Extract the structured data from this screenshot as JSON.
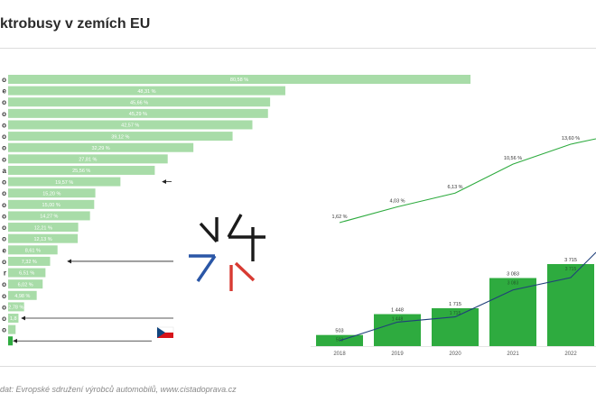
{
  "header": {
    "title": "ktrobusy v zemích EU"
  },
  "footer": {
    "source": "dat: Evropské sdružení výrobců automobilů, www.cistadoprava.cz"
  },
  "colors": {
    "bar": "#a8dca8",
    "column": "#2eab3f",
    "share_line": "#2eab3f",
    "count_line": "#1f3f7a",
    "logo_dark": "#1a1a1a",
    "logo_blue": "#2a56a6",
    "logo_red": "#d83a32"
  },
  "logo": {
    "icon": "v4-logo-icon"
  },
  "flag": {
    "icon": "czech-flag-icon"
  },
  "chart_data": [
    {
      "type": "bar",
      "orientation": "horizontal",
      "categories": [
        "o",
        "e",
        "o",
        "o",
        "o",
        "o",
        "o",
        "o",
        "a",
        "o",
        "o",
        "o",
        "o",
        "o",
        "o",
        "e",
        "o",
        "r",
        "o",
        "o",
        "o",
        "o",
        "o",
        ""
      ],
      "values": [
        80.58,
        48.31,
        45.66,
        45.29,
        42.57,
        39.12,
        32.29,
        27.81,
        25.56,
        19.57,
        15.2,
        15.0,
        14.27,
        12.21,
        12.13,
        8.61,
        7.32,
        6.51,
        6.02,
        4.98,
        2.78,
        1.8,
        1.3,
        0.8
      ],
      "labels": [
        "80,58 %",
        "48,31 %",
        "45,66 %",
        "45,29 %",
        "42,57 %",
        "39,12 %",
        "32,29 %",
        "27,81 %",
        "25,56 %",
        "19,57 %",
        "15,20 %",
        "15,00 %",
        "14,27 %",
        "12,21 %",
        "12,13 %",
        "8,61 %",
        "7,32 %",
        "6,51 %",
        "6,02 %",
        "4,98 %",
        "2,78 %",
        "1,8",
        "",
        ""
      ],
      "xlim": [
        0,
        80.58
      ],
      "arrow_rows": [
        9,
        16,
        21,
        23
      ]
    },
    {
      "type": "bar",
      "categories": [
        "2018",
        "2019",
        "2020",
        "2021",
        "2022"
      ],
      "series": [
        {
          "values": [
            503,
            1448,
            1715,
            3083,
            3715
          ],
          "labels_above": [
            "503",
            "1 448",
            "1 715",
            "3 083",
            "3 715"
          ],
          "labels_inside": [
            "503",
            "1 448",
            "1 715",
            "3 083",
            "3 715"
          ]
        }
      ],
      "ylim": [
        0,
        3715
      ]
    },
    {
      "type": "line",
      "x": [
        "2018",
        "2019",
        "2020",
        "2021",
        "2022"
      ],
      "series": [
        {
          "values": [
            1.62,
            4.03,
            6.13,
            10.56,
            13.6
          ],
          "labels": [
            "1,62 %",
            "4,03 %",
            "6,13 %",
            "10,56 %",
            "13,60 %"
          ]
        }
      ]
    },
    {
      "type": "line",
      "x": [
        "2018",
        "2019",
        "2020",
        "2021",
        "2022"
      ],
      "series": [
        {
          "values": [
            503,
            1448,
            1715,
            3083,
            3715
          ]
        }
      ]
    }
  ]
}
